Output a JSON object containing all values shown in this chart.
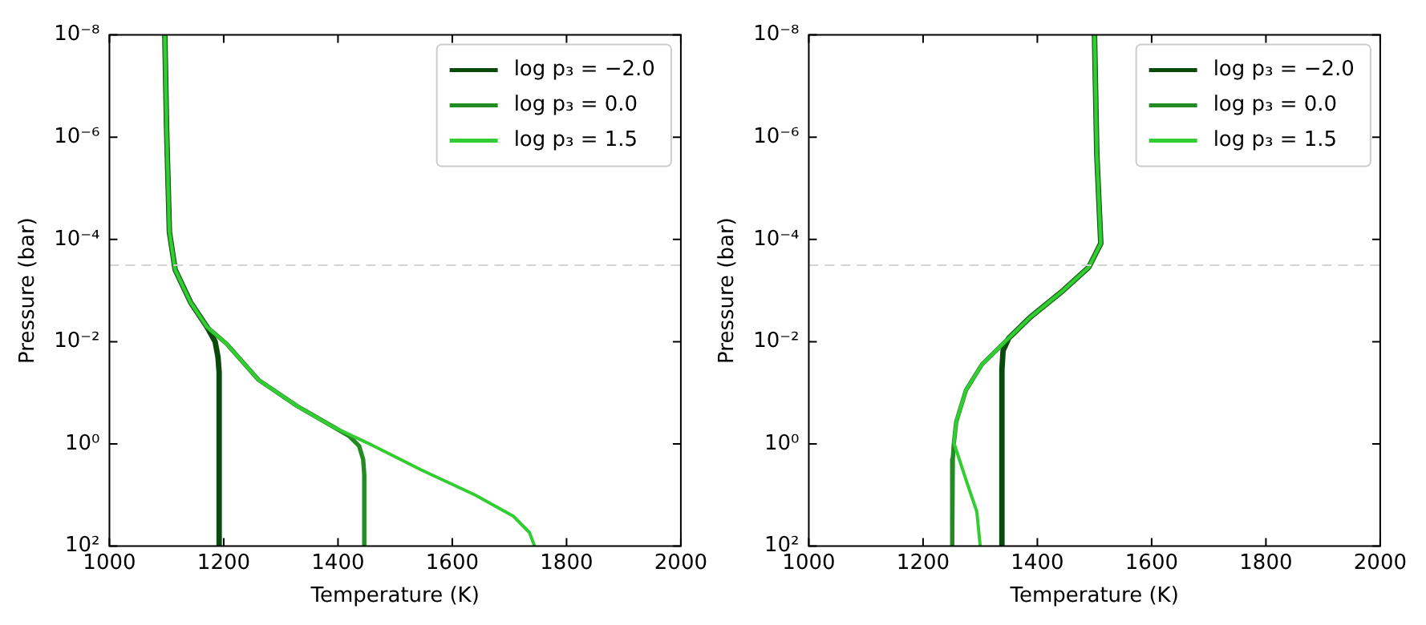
{
  "chart_data": [
    {
      "type": "line",
      "xlabel": "Temperature (K)",
      "ylabel": "Pressure (bar)",
      "log": "y",
      "legend": "top right",
      "marker": "none",
      "line_style": "solid",
      "xlim": [
        1000,
        2000
      ],
      "xticks": [
        1000,
        1200,
        1400,
        1600,
        1800,
        2000
      ],
      "ylim": [
        100,
        1e-08
      ],
      "yticks": [
        {
          "value": 1e-08,
          "label": "10⁻⁸"
        },
        {
          "value": 1e-06,
          "label": "10⁻⁶"
        },
        {
          "value": 0.0001,
          "label": "10⁻⁴"
        },
        {
          "value": 0.01,
          "label": "10⁻²"
        },
        {
          "value": 1,
          "label": "10⁰"
        },
        {
          "value": 100,
          "label": "10²"
        }
      ],
      "ref_lines": [
        {
          "axis": "y",
          "value": 0.00032,
          "color": "#d3d3d3",
          "line_style": "dashed"
        }
      ],
      "series": [
        {
          "name": "log p₃ = −2.0",
          "color": "#0b4a0b",
          "x": [
            1097,
            1100,
            1105,
            1115,
            1142,
            1171,
            1185,
            1190,
            1192,
            1192
          ],
          "values": [
            1e-08,
            6.5e-07,
            7.2e-05,
            0.00039,
            0.0017,
            0.0052,
            0.01,
            0.02,
            0.04,
            100
          ]
        },
        {
          "name": "log p₃ = 0.0",
          "color": "#228b22",
          "x": [
            1097,
            1100,
            1105,
            1115,
            1142,
            1171,
            1205,
            1261,
            1328,
            1394,
            1420,
            1437,
            1444,
            1446,
            1446
          ],
          "values": [
            1e-08,
            6.5e-07,
            7.2e-05,
            0.00039,
            0.0017,
            0.0052,
            0.011,
            0.056,
            0.18,
            0.48,
            0.71,
            1.1,
            2,
            4,
            100
          ]
        },
        {
          "name": "log p₃ = 1.5",
          "color": "#32cd32",
          "x": [
            1097,
            1100,
            1105,
            1115,
            1142,
            1171,
            1205,
            1261,
            1328,
            1394,
            1451,
            1545,
            1640,
            1707,
            1735,
            1744
          ],
          "values": [
            1e-08,
            6.5e-07,
            7.2e-05,
            0.00039,
            0.0017,
            0.0052,
            0.011,
            0.056,
            0.18,
            0.48,
            0.95,
            3.2,
            10,
            26,
            54,
            100
          ]
        }
      ]
    },
    {
      "type": "line",
      "xlabel": "Temperature (K)",
      "ylabel": "Pressure (bar)",
      "log": "y",
      "legend": "top right",
      "marker": "none",
      "line_style": "solid",
      "xlim": [
        1000,
        2000
      ],
      "xticks": [
        1000,
        1200,
        1400,
        1600,
        1800,
        2000
      ],
      "ylim": [
        100,
        1e-08
      ],
      "yticks": [
        {
          "value": 1e-08,
          "label": "10⁻⁸"
        },
        {
          "value": 1e-06,
          "label": "10⁻⁶"
        },
        {
          "value": 0.0001,
          "label": "10⁻⁴"
        },
        {
          "value": 0.01,
          "label": "10⁻²"
        },
        {
          "value": 1,
          "label": "10⁰"
        },
        {
          "value": 100,
          "label": "10²"
        }
      ],
      "ref_lines": [
        {
          "axis": "y",
          "value": 0.00032,
          "color": "#d3d3d3",
          "line_style": "dashed"
        }
      ],
      "series": [
        {
          "name": "log p₃ = −2.0",
          "color": "#0b4a0b",
          "x": [
            1500,
            1504,
            1511,
            1502,
            1490,
            1445,
            1388,
            1350,
            1340,
            1338,
            1338
          ],
          "values": [
            1e-08,
            2.1e-06,
            0.00012,
            0.00019,
            0.00035,
            0.001,
            0.0033,
            0.0085,
            0.015,
            0.035,
            100
          ]
        },
        {
          "name": "log p₃ = 0.0",
          "color": "#228b22",
          "x": [
            1500,
            1504,
            1511,
            1502,
            1490,
            1445,
            1388,
            1350,
            1303,
            1275,
            1258,
            1254,
            1252,
            1251
          ],
          "values": [
            1e-08,
            2.1e-06,
            0.00012,
            0.00019,
            0.00035,
            0.001,
            0.0033,
            0.0085,
            0.028,
            0.089,
            0.37,
            0.95,
            2,
            100
          ]
        },
        {
          "name": "log p₃ = 1.5",
          "color": "#32cd32",
          "x": [
            1500,
            1504,
            1511,
            1502,
            1490,
            1445,
            1388,
            1350,
            1303,
            1275,
            1258,
            1254,
            1275,
            1294,
            1300
          ],
          "values": [
            1e-08,
            2.1e-06,
            0.00012,
            0.00019,
            0.00035,
            0.001,
            0.0033,
            0.0085,
            0.028,
            0.089,
            0.37,
            0.95,
            5,
            21,
            100
          ]
        }
      ]
    }
  ]
}
